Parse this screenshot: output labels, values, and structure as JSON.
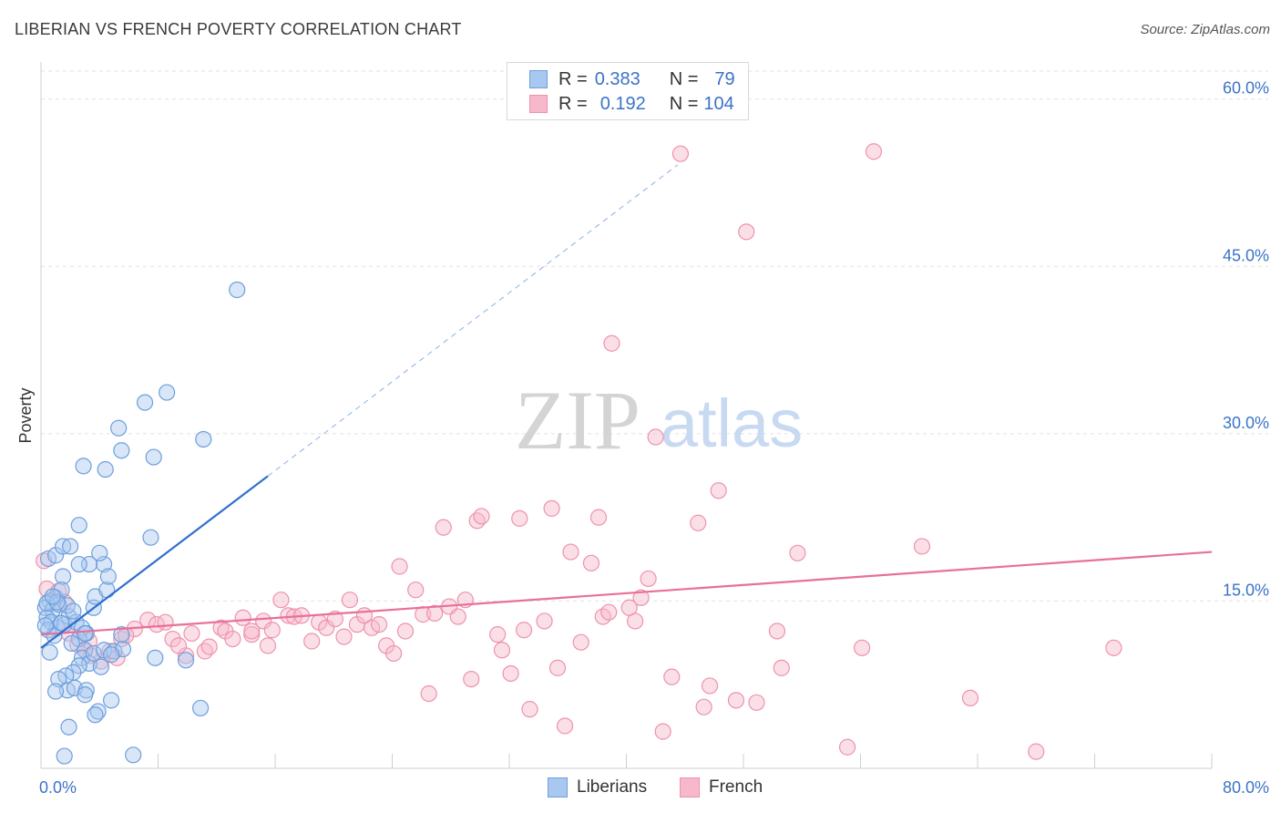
{
  "title": "LIBERIAN VS FRENCH POVERTY CORRELATION CHART",
  "source": "Source: ZipAtlas.com",
  "watermark": {
    "zip": "ZIP",
    "atlas": "atlas"
  },
  "legend_top": [
    {
      "r_label": "R =",
      "r_value": "0.383",
      "n_label": "N =",
      "n_value": "79"
    },
    {
      "r_label": "R =",
      "r_value": "0.192",
      "n_label": "N =",
      "n_value": "104"
    }
  ],
  "colors": {
    "liberians_fill": "#a9c8f0",
    "liberians_stroke": "#6d9fdc",
    "liberians_line": "#2f6fcf",
    "french_fill": "#f6b8ca",
    "french_stroke": "#ee92ad",
    "french_line": "#e8709a",
    "grid": "#e2e2e2",
    "axis_text": "#3b73c8"
  },
  "chart_data": {
    "type": "scatter",
    "title": "LIBERIAN VS FRENCH POVERTY CORRELATION CHART",
    "xlabel": "",
    "ylabel": "Poverty",
    "xlim": [
      0,
      80
    ],
    "ylim": [
      0,
      63
    ],
    "x_tick_labels": [
      "0.0%",
      "80.0%"
    ],
    "y_ticks": [
      15,
      30,
      45,
      60
    ],
    "y_tick_labels": [
      "15.0%",
      "30.0%",
      "45.0%",
      "60.0%"
    ],
    "grid": true,
    "legend_position": "bottom",
    "series": [
      {
        "name": "Liberians",
        "trend": {
          "x": [
            0,
            15.5
          ],
          "y": [
            10.8,
            26.2
          ],
          "dashed_to": [
            43.5,
            54.1
          ]
        },
        "points": [
          [
            0.5,
            18.8
          ],
          [
            1.0,
            19.1
          ],
          [
            1.5,
            19.9
          ],
          [
            1.0,
            15.3
          ],
          [
            0.6,
            15.0
          ],
          [
            0.3,
            14.4
          ],
          [
            0.8,
            14.2
          ],
          [
            1.2,
            14.7
          ],
          [
            0.4,
            13.5
          ],
          [
            0.7,
            13.1
          ],
          [
            1.1,
            12.6
          ],
          [
            1.6,
            12.9
          ],
          [
            0.5,
            12.4
          ],
          [
            0.9,
            11.9
          ],
          [
            0.6,
            10.4
          ],
          [
            1.9,
            13.6
          ],
          [
            2.4,
            13.1
          ],
          [
            2.8,
            12.6
          ],
          [
            3.1,
            12.1
          ],
          [
            2.6,
            11.6
          ],
          [
            2.1,
            11.2
          ],
          [
            3.0,
            10.6
          ],
          [
            2.8,
            9.9
          ],
          [
            3.3,
            9.4
          ],
          [
            3.6,
            10.3
          ],
          [
            4.3,
            10.6
          ],
          [
            5.0,
            10.5
          ],
          [
            5.6,
            10.7
          ],
          [
            4.8,
            10.2
          ],
          [
            4.1,
            9.1
          ],
          [
            2.6,
            9.2
          ],
          [
            2.2,
            8.6
          ],
          [
            1.7,
            8.3
          ],
          [
            1.2,
            8.0
          ],
          [
            1.8,
            7.0
          ],
          [
            2.3,
            7.2
          ],
          [
            3.1,
            7.0
          ],
          [
            3.0,
            6.6
          ],
          [
            1.0,
            6.9
          ],
          [
            4.8,
            6.1
          ],
          [
            3.9,
            5.1
          ],
          [
            3.7,
            4.8
          ],
          [
            1.9,
            3.7
          ],
          [
            1.6,
            1.1
          ],
          [
            6.3,
            1.2
          ],
          [
            10.9,
            5.4
          ],
          [
            9.9,
            9.7
          ],
          [
            7.8,
            9.9
          ],
          [
            3.6,
            14.4
          ],
          [
            3.7,
            15.4
          ],
          [
            4.5,
            16.0
          ],
          [
            1.5,
            17.2
          ],
          [
            4.3,
            18.3
          ],
          [
            3.3,
            18.3
          ],
          [
            2.6,
            18.3
          ],
          [
            4.0,
            19.3
          ],
          [
            2.0,
            19.9
          ],
          [
            2.6,
            21.8
          ],
          [
            7.5,
            20.7
          ],
          [
            2.9,
            27.1
          ],
          [
            4.4,
            26.8
          ],
          [
            5.5,
            28.5
          ],
          [
            7.7,
            27.9
          ],
          [
            5.3,
            30.5
          ],
          [
            7.1,
            32.8
          ],
          [
            8.6,
            33.7
          ],
          [
            11.1,
            29.5
          ],
          [
            13.4,
            42.9
          ],
          [
            1.4,
            16.0
          ],
          [
            0.4,
            14.8
          ],
          [
            1.8,
            14.6
          ],
          [
            2.2,
            14.1
          ],
          [
            0.3,
            12.8
          ],
          [
            1.4,
            13.0
          ],
          [
            3.0,
            12.1
          ],
          [
            4.6,
            17.2
          ],
          [
            1.1,
            14.9
          ],
          [
            0.8,
            15.4
          ],
          [
            5.5,
            12.0
          ]
        ]
      },
      {
        "name": "French",
        "trend": {
          "x": [
            0,
            80
          ],
          "y": [
            12.0,
            19.4
          ]
        },
        "points": [
          [
            0.2,
            18.6
          ],
          [
            0.4,
            16.1
          ],
          [
            1.2,
            15.9
          ],
          [
            1.6,
            14.9
          ],
          [
            1.9,
            12.1
          ],
          [
            2.5,
            11.1
          ],
          [
            3.0,
            10.6
          ],
          [
            3.4,
            10.1
          ],
          [
            4.1,
            9.6
          ],
          [
            4.7,
            10.5
          ],
          [
            5.2,
            9.9
          ],
          [
            5.5,
            11.6
          ],
          [
            6.4,
            12.5
          ],
          [
            7.3,
            13.3
          ],
          [
            7.9,
            12.9
          ],
          [
            8.5,
            13.1
          ],
          [
            9.0,
            11.6
          ],
          [
            9.9,
            10.1
          ],
          [
            10.3,
            12.1
          ],
          [
            11.2,
            10.5
          ],
          [
            11.5,
            10.9
          ],
          [
            12.3,
            12.6
          ],
          [
            12.6,
            12.3
          ],
          [
            13.1,
            11.6
          ],
          [
            13.8,
            13.5
          ],
          [
            14.4,
            12.0
          ],
          [
            15.2,
            13.2
          ],
          [
            15.5,
            11.0
          ],
          [
            15.8,
            12.4
          ],
          [
            16.4,
            15.1
          ],
          [
            16.9,
            13.7
          ],
          [
            17.3,
            13.6
          ],
          [
            17.8,
            13.7
          ],
          [
            18.5,
            11.4
          ],
          [
            19.0,
            13.1
          ],
          [
            19.5,
            12.6
          ],
          [
            20.1,
            13.4
          ],
          [
            20.7,
            11.8
          ],
          [
            21.1,
            15.1
          ],
          [
            21.6,
            12.9
          ],
          [
            22.1,
            13.7
          ],
          [
            22.6,
            12.6
          ],
          [
            23.1,
            12.9
          ],
          [
            23.6,
            11.0
          ],
          [
            24.1,
            10.3
          ],
          [
            24.5,
            18.1
          ],
          [
            24.9,
            12.3
          ],
          [
            25.6,
            16.0
          ],
          [
            26.1,
            13.8
          ],
          [
            26.5,
            6.7
          ],
          [
            26.9,
            13.9
          ],
          [
            27.5,
            21.6
          ],
          [
            27.9,
            14.5
          ],
          [
            28.5,
            13.6
          ],
          [
            29.0,
            15.1
          ],
          [
            29.4,
            8.0
          ],
          [
            29.8,
            22.2
          ],
          [
            30.1,
            22.6
          ],
          [
            31.2,
            12.0
          ],
          [
            31.5,
            10.6
          ],
          [
            32.1,
            8.5
          ],
          [
            32.7,
            22.4
          ],
          [
            33.0,
            12.4
          ],
          [
            33.4,
            5.3
          ],
          [
            34.4,
            13.2
          ],
          [
            34.9,
            23.3
          ],
          [
            35.3,
            9.0
          ],
          [
            35.8,
            3.8
          ],
          [
            36.2,
            19.4
          ],
          [
            36.9,
            11.3
          ],
          [
            37.6,
            18.4
          ],
          [
            38.1,
            22.5
          ],
          [
            38.4,
            13.6
          ],
          [
            38.8,
            14.0
          ],
          [
            39.0,
            38.1
          ],
          [
            40.2,
            14.4
          ],
          [
            40.6,
            13.2
          ],
          [
            41.0,
            15.3
          ],
          [
            41.5,
            17.0
          ],
          [
            42.0,
            29.7
          ],
          [
            42.5,
            3.3
          ],
          [
            43.1,
            8.2
          ],
          [
            43.7,
            55.1
          ],
          [
            44.9,
            22.0
          ],
          [
            45.3,
            5.5
          ],
          [
            45.7,
            7.4
          ],
          [
            46.3,
            24.9
          ],
          [
            47.5,
            6.1
          ],
          [
            48.2,
            48.1
          ],
          [
            48.9,
            5.9
          ],
          [
            50.3,
            12.3
          ],
          [
            50.6,
            9.0
          ],
          [
            51.7,
            19.3
          ],
          [
            55.1,
            1.9
          ],
          [
            56.1,
            10.8
          ],
          [
            56.9,
            55.3
          ],
          [
            60.2,
            19.9
          ],
          [
            63.5,
            6.3
          ],
          [
            68.0,
            1.5
          ],
          [
            73.3,
            10.8
          ],
          [
            3.3,
            11.4
          ],
          [
            5.8,
            11.9
          ],
          [
            9.4,
            11.0
          ],
          [
            14.4,
            12.3
          ]
        ]
      }
    ]
  }
}
